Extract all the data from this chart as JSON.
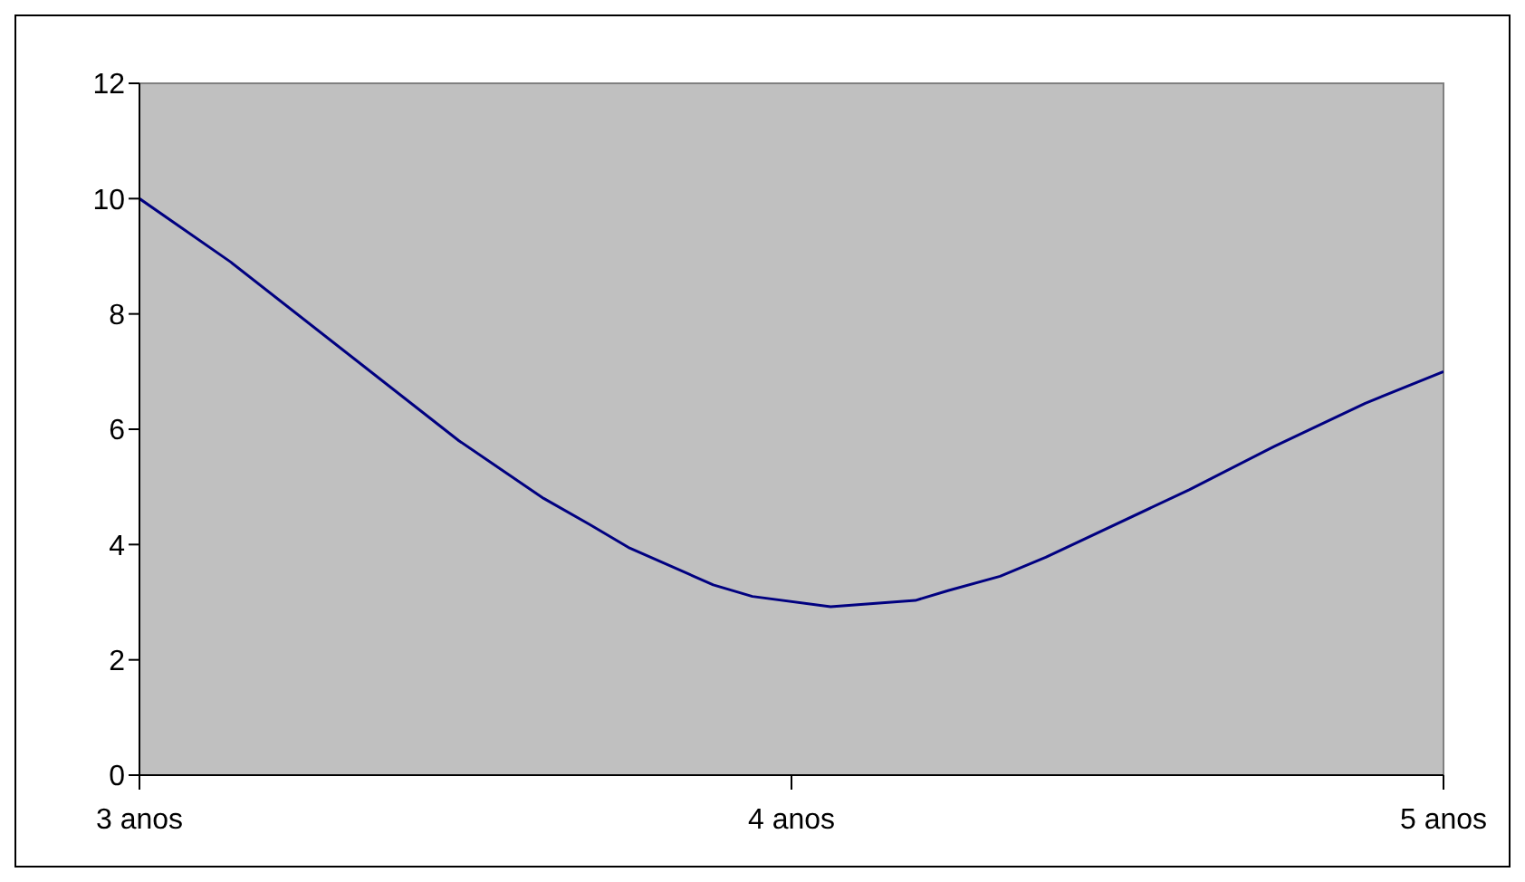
{
  "chart_data": {
    "type": "line",
    "x": [
      3,
      3.14,
      3.49,
      3.62,
      3.69,
      3.75,
      3.88,
      3.94,
      4.06,
      4.19,
      4.24,
      4.32,
      4.39,
      4.61,
      4.74,
      4.88,
      5
    ],
    "series": [
      {
        "color": "#000080",
        "values": [
          10,
          8.9,
          5.8,
          4.8,
          4.35,
          3.95,
          3.3,
          3.1,
          2.92,
          3.03,
          3.2,
          3.45,
          3.78,
          4.95,
          5.7,
          6.45,
          7
        ]
      }
    ],
    "xlim": [
      3,
      5
    ],
    "xticks": [
      {
        "value": 3,
        "label": "3 anos"
      },
      {
        "value": 4,
        "label": "4 anos"
      },
      {
        "value": 5,
        "label": "5 anos"
      }
    ],
    "ylim": [
      0,
      12
    ],
    "yticks": [
      0,
      2,
      4,
      6,
      8,
      10,
      12
    ],
    "marker": "none",
    "line_style": "solid"
  }
}
